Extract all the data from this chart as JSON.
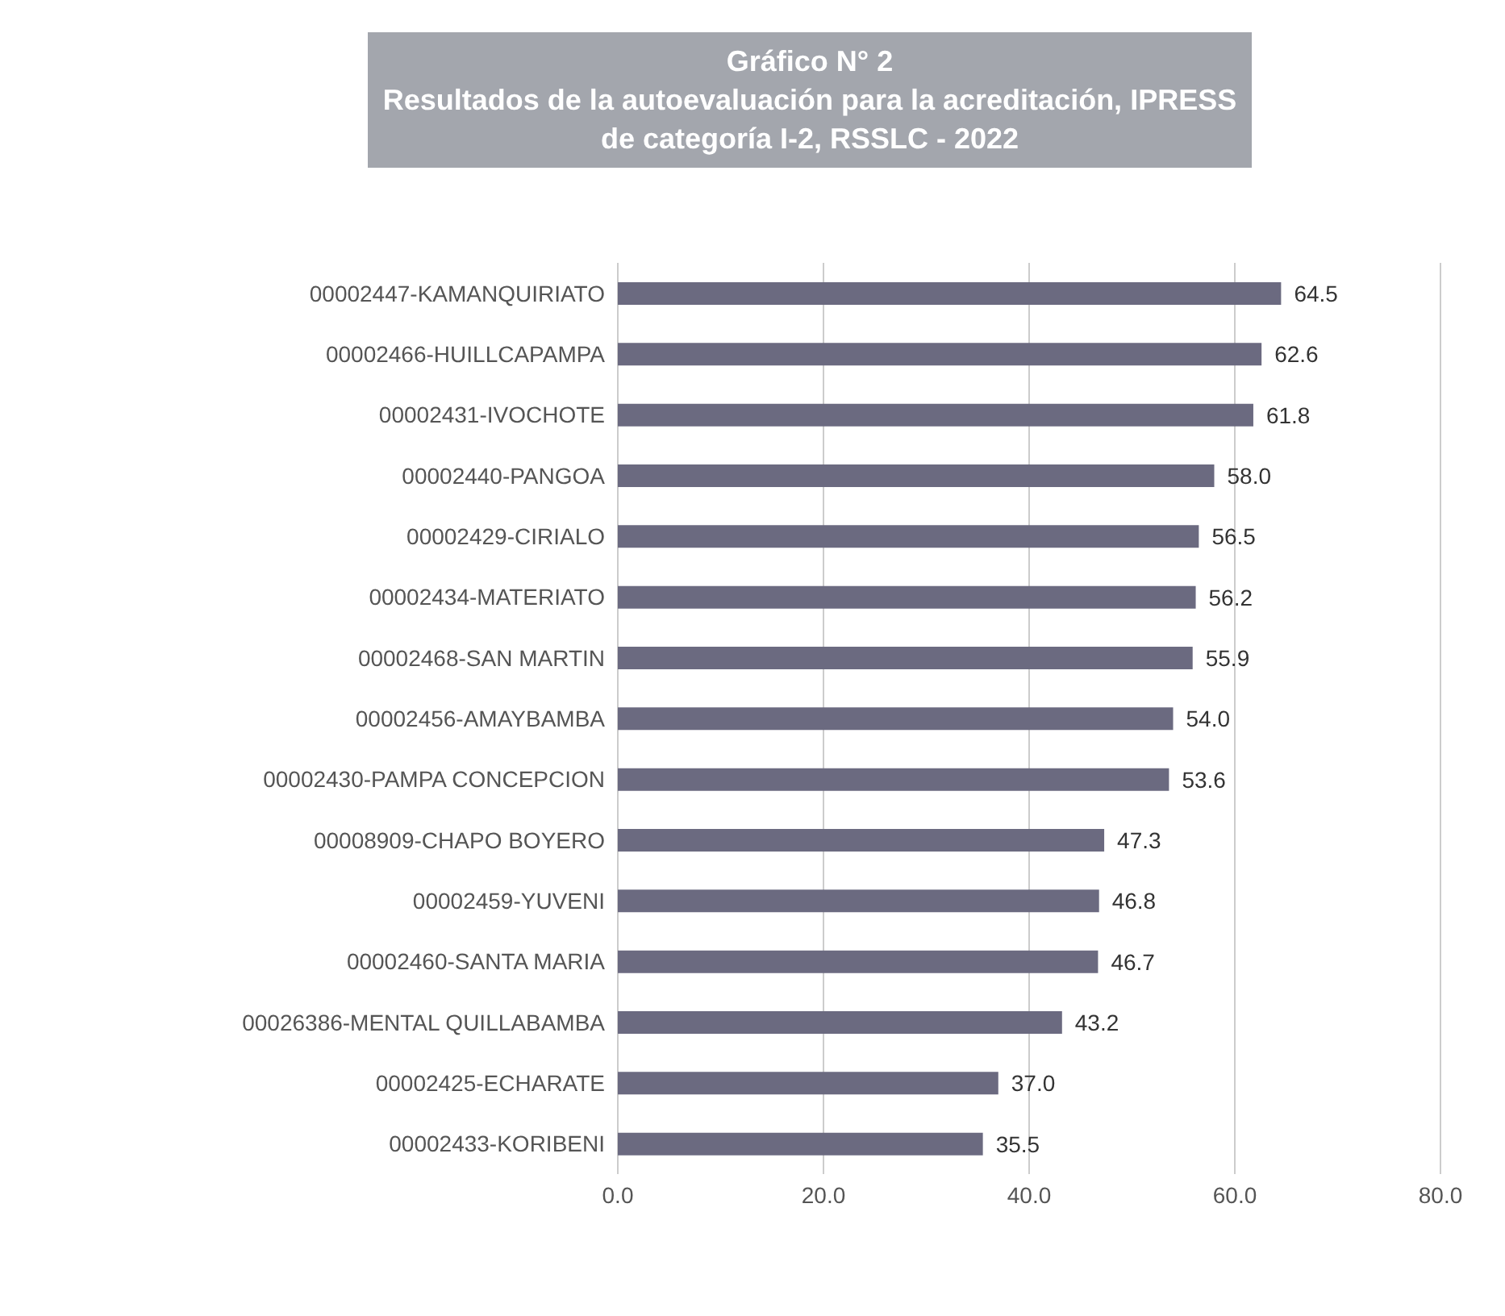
{
  "chart_data": {
    "type": "bar",
    "orientation": "horizontal",
    "title": "Gráfico N° 2",
    "subtitle": "Resultados de la autoevaluación para la acreditación, IPRESS de categoría I-2, RSSLC - 2022",
    "categories": [
      "00002447-KAMANQUIRIATO",
      "00002466-HUILLCAPAMPA",
      "00002431-IVOCHOTE",
      "00002440-PANGOA",
      "00002429-CIRIALO",
      "00002434-MATERIATO",
      "00002468-SAN MARTIN",
      "00002456-AMAYBAMBA",
      "00002430-PAMPA CONCEPCION",
      "00008909-CHAPO BOYERO",
      "00002459-YUVENI",
      "00002460-SANTA MARIA",
      "00026386-MENTAL QUILLABAMBA",
      "00002425-ECHARATE",
      "00002433-KORIBENI"
    ],
    "values": [
      64.5,
      62.6,
      61.8,
      58.0,
      56.5,
      56.2,
      55.9,
      54.0,
      53.6,
      47.3,
      46.8,
      46.7,
      43.2,
      37.0,
      35.5
    ],
    "value_labels": [
      "64.5",
      "62.6",
      "61.8",
      "58.0",
      "56.5",
      "56.2",
      "55.9",
      "54.0",
      "53.6",
      "47.3",
      "46.8",
      "46.7",
      "43.2",
      "37.0",
      "35.5"
    ],
    "color": "#6b6a80",
    "xlim": [
      0,
      80
    ],
    "xticks": [
      {
        "value": 0,
        "label": "0.0"
      },
      {
        "value": 20,
        "label": "20.0"
      },
      {
        "value": 40,
        "label": "40.0"
      },
      {
        "value": 60,
        "label": "60.0"
      },
      {
        "value": 80,
        "label": "80.0"
      }
    ],
    "grid": "x"
  }
}
